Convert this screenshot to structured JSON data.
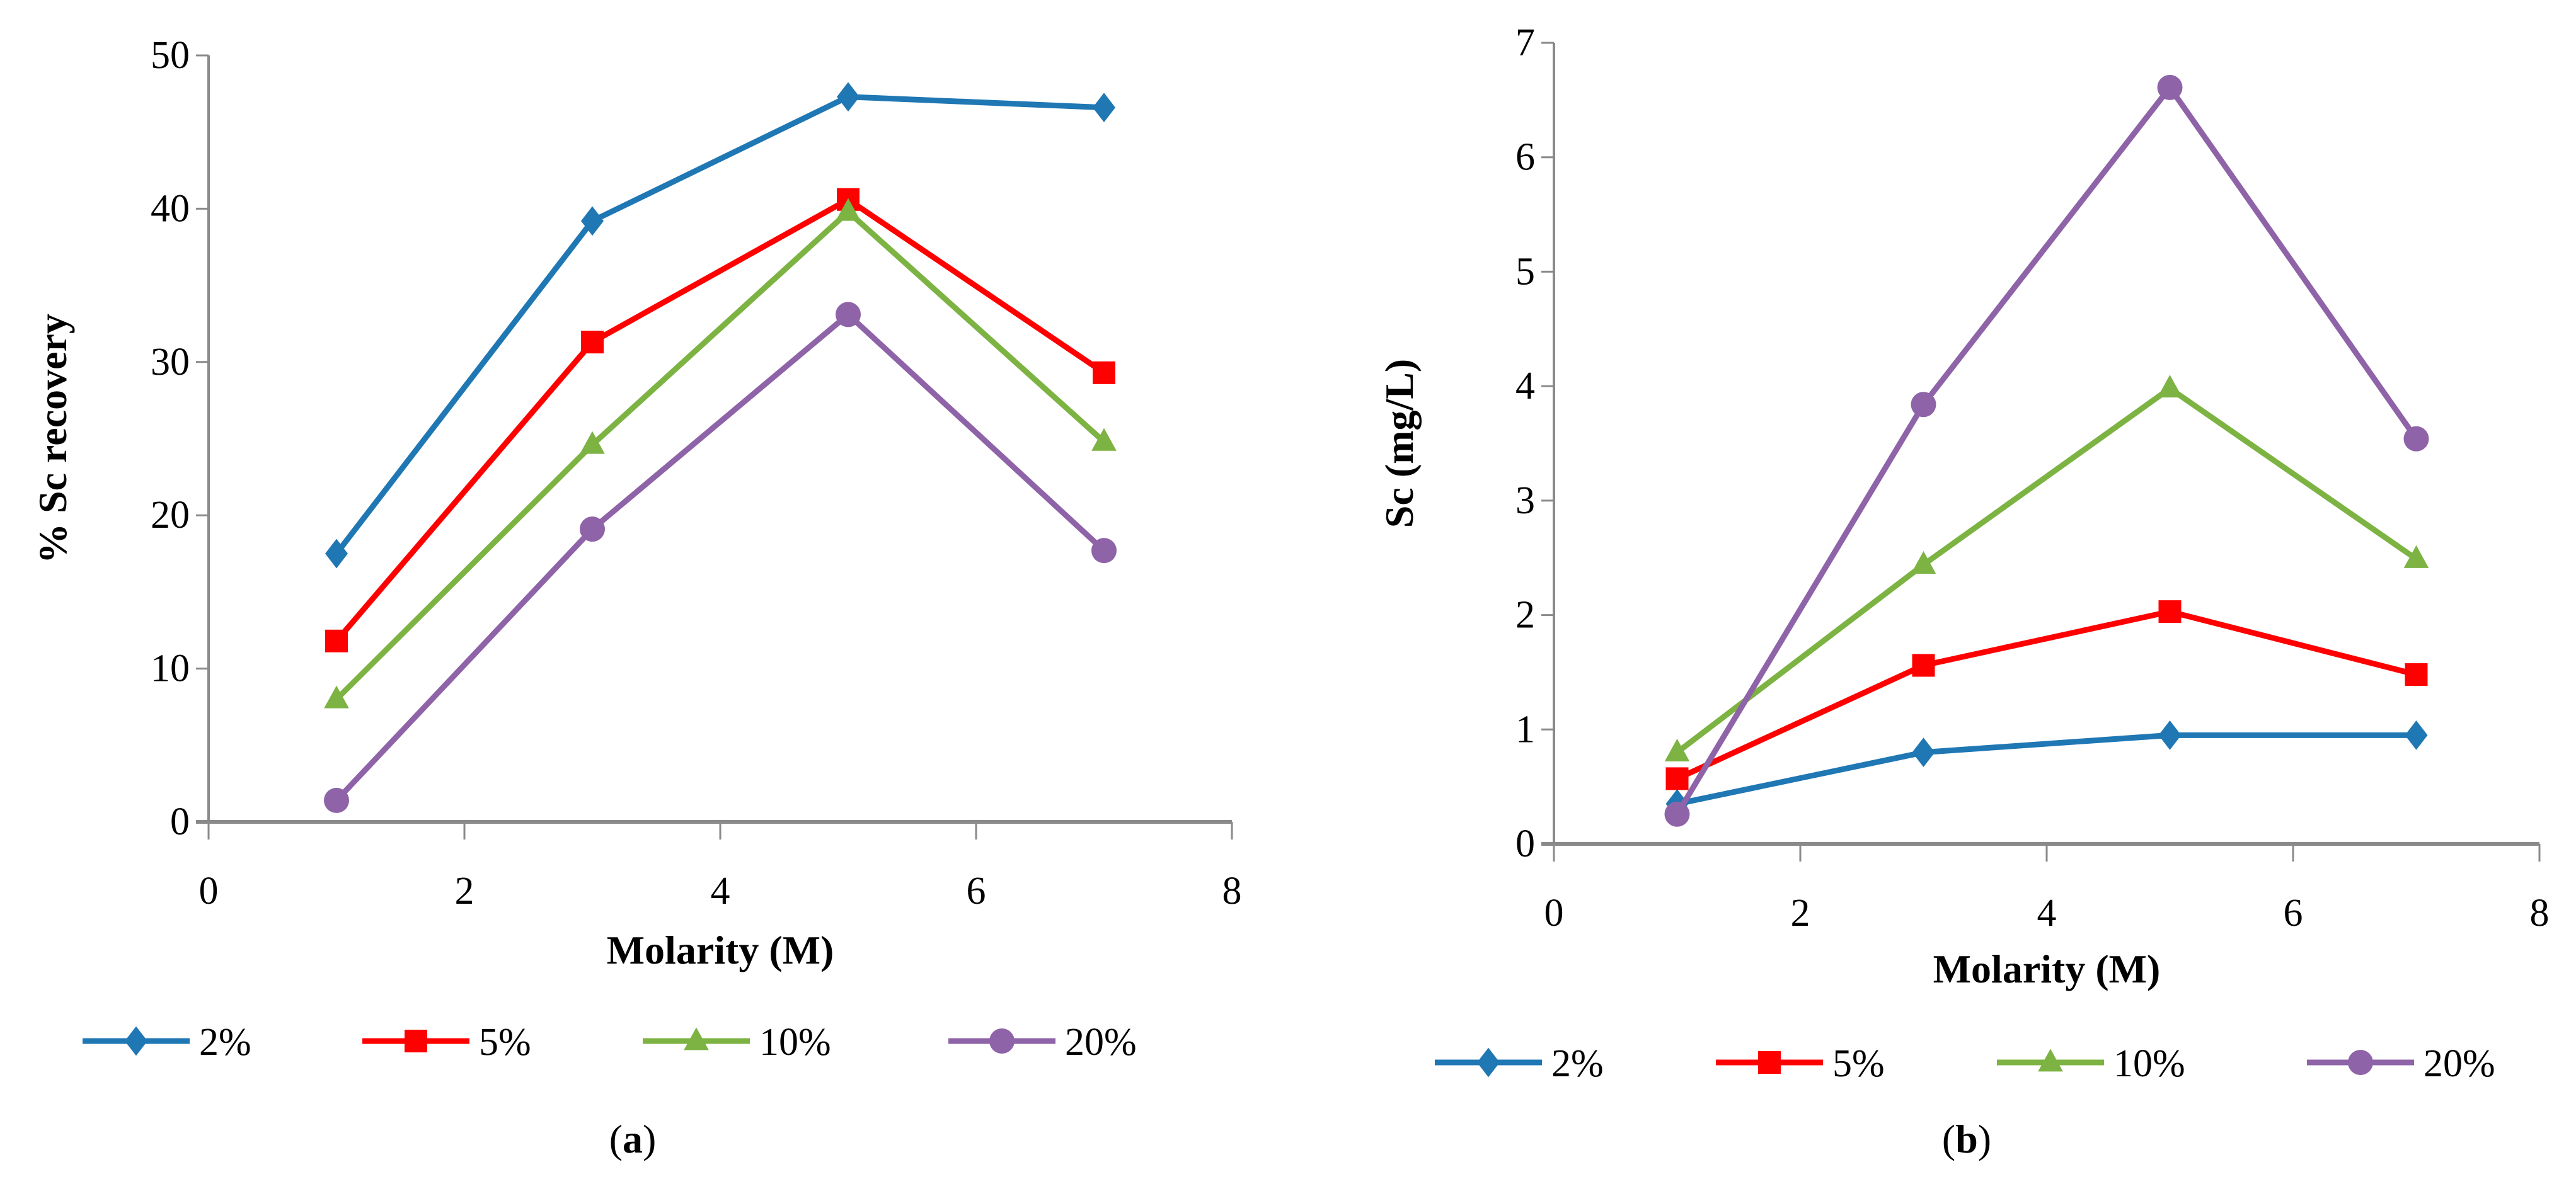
{
  "chart_data": [
    {
      "type": "line",
      "panel_label": "a",
      "xlabel": "Molarity (M)",
      "ylabel": "% Sc recovery",
      "xlim": [
        0,
        8
      ],
      "ylim": [
        0,
        50
      ],
      "xticks": [
        0,
        2,
        4,
        6,
        8
      ],
      "yticks": [
        0,
        10,
        20,
        30,
        40,
        50
      ],
      "grid": false,
      "legend_position": "bottom",
      "x": [
        1,
        3,
        5,
        7
      ],
      "series": [
        {
          "name": "2%",
          "color": "#1f77b4",
          "marker": "diamond",
          "values": [
            17.5,
            39.2,
            47.3,
            46.6
          ]
        },
        {
          "name": "5%",
          "color": "#ff0000",
          "marker": "square",
          "values": [
            11.8,
            31.3,
            40.6,
            29.3
          ]
        },
        {
          "name": "10%",
          "color": "#7cb342",
          "marker": "triangle",
          "values": [
            8.0,
            24.6,
            39.8,
            24.8
          ]
        },
        {
          "name": "20%",
          "color": "#8e63a8",
          "marker": "circle",
          "values": [
            1.4,
            19.1,
            33.1,
            17.7
          ]
        }
      ]
    },
    {
      "type": "line",
      "panel_label": "b",
      "xlabel": "Molarity (M)",
      "ylabel": "Sc (mg/L)",
      "xlim": [
        0,
        8
      ],
      "ylim": [
        0,
        7
      ],
      "xticks": [
        0,
        2,
        4,
        6,
        8
      ],
      "yticks": [
        0,
        1,
        2,
        3,
        4,
        5,
        6,
        7
      ],
      "grid": false,
      "legend_position": "bottom",
      "x": [
        1,
        3,
        5,
        7
      ],
      "series": [
        {
          "name": "2%",
          "color": "#1f77b4",
          "marker": "diamond",
          "values": [
            0.35,
            0.8,
            0.95,
            0.95
          ]
        },
        {
          "name": "5%",
          "color": "#ff0000",
          "marker": "square",
          "values": [
            0.57,
            1.56,
            2.03,
            1.48
          ]
        },
        {
          "name": "10%",
          "color": "#7cb342",
          "marker": "triangle",
          "values": [
            0.8,
            2.44,
            3.98,
            2.49
          ]
        },
        {
          "name": "20%",
          "color": "#8e63a8",
          "marker": "circle",
          "values": [
            0.26,
            3.84,
            6.61,
            3.54
          ]
        }
      ]
    }
  ]
}
